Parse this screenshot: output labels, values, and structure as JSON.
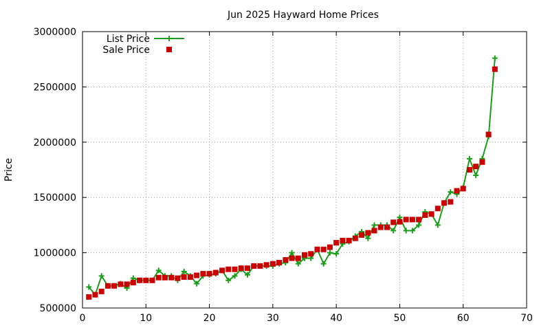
{
  "chart_data": {
    "type": "line",
    "title": "Jun 2025 Hayward Home Prices",
    "xlabel": "",
    "ylabel": "Price",
    "xlim": [
      0,
      70
    ],
    "ylim": [
      500000,
      3000000
    ],
    "xticks": [
      0,
      10,
      20,
      30,
      40,
      50,
      60,
      70
    ],
    "yticks": [
      500000,
      1000000,
      1500000,
      2000000,
      2500000,
      3000000
    ],
    "grid": true,
    "legend": "top-left",
    "x": [
      1,
      2,
      3,
      4,
      5,
      6,
      7,
      8,
      9,
      10,
      11,
      12,
      13,
      14,
      15,
      16,
      17,
      18,
      19,
      20,
      21,
      22,
      23,
      24,
      25,
      26,
      27,
      28,
      29,
      30,
      31,
      32,
      33,
      34,
      35,
      36,
      37,
      38,
      39,
      40,
      41,
      42,
      43,
      44,
      45,
      46,
      47,
      48,
      49,
      50,
      51,
      52,
      53,
      54,
      55,
      56,
      57,
      58,
      59,
      60,
      61,
      62,
      63,
      64,
      65
    ],
    "series": [
      {
        "name": "List Price",
        "style": "line-plus",
        "color": "#1a9e1a",
        "values": [
          690000,
          620000,
          790000,
          700000,
          700000,
          720000,
          680000,
          770000,
          750000,
          750000,
          750000,
          840000,
          790000,
          790000,
          750000,
          830000,
          790000,
          720000,
          790000,
          800000,
          810000,
          840000,
          750000,
          790000,
          850000,
          800000,
          880000,
          880000,
          880000,
          880000,
          900000,
          910000,
          1000000,
          900000,
          950000,
          950000,
          1030000,
          900000,
          1000000,
          990000,
          1080000,
          1100000,
          1150000,
          1190000,
          1130000,
          1250000,
          1250000,
          1250000,
          1200000,
          1320000,
          1200000,
          1200000,
          1250000,
          1370000,
          1350000,
          1250000,
          1450000,
          1550000,
          1530000,
          1590000,
          1850000,
          1700000,
          1850000,
          2050000,
          2760000
        ]
      },
      {
        "name": "Sale Price",
        "style": "square-markers",
        "color": "#cc0000",
        "values": [
          600000,
          620000,
          650000,
          700000,
          700000,
          715000,
          715000,
          730000,
          750000,
          750000,
          750000,
          775000,
          775000,
          775000,
          770000,
          780000,
          780000,
          795000,
          810000,
          810000,
          820000,
          840000,
          850000,
          850000,
          860000,
          860000,
          880000,
          880000,
          890000,
          900000,
          910000,
          935000,
          950000,
          950000,
          980000,
          990000,
          1030000,
          1030000,
          1050000,
          1090000,
          1110000,
          1110000,
          1130000,
          1160000,
          1180000,
          1200000,
          1230000,
          1230000,
          1275000,
          1280000,
          1300000,
          1300000,
          1300000,
          1340000,
          1350000,
          1400000,
          1450000,
          1460000,
          1560000,
          1580000,
          1750000,
          1780000,
          1820000,
          2070000,
          2660000
        ]
      }
    ]
  }
}
